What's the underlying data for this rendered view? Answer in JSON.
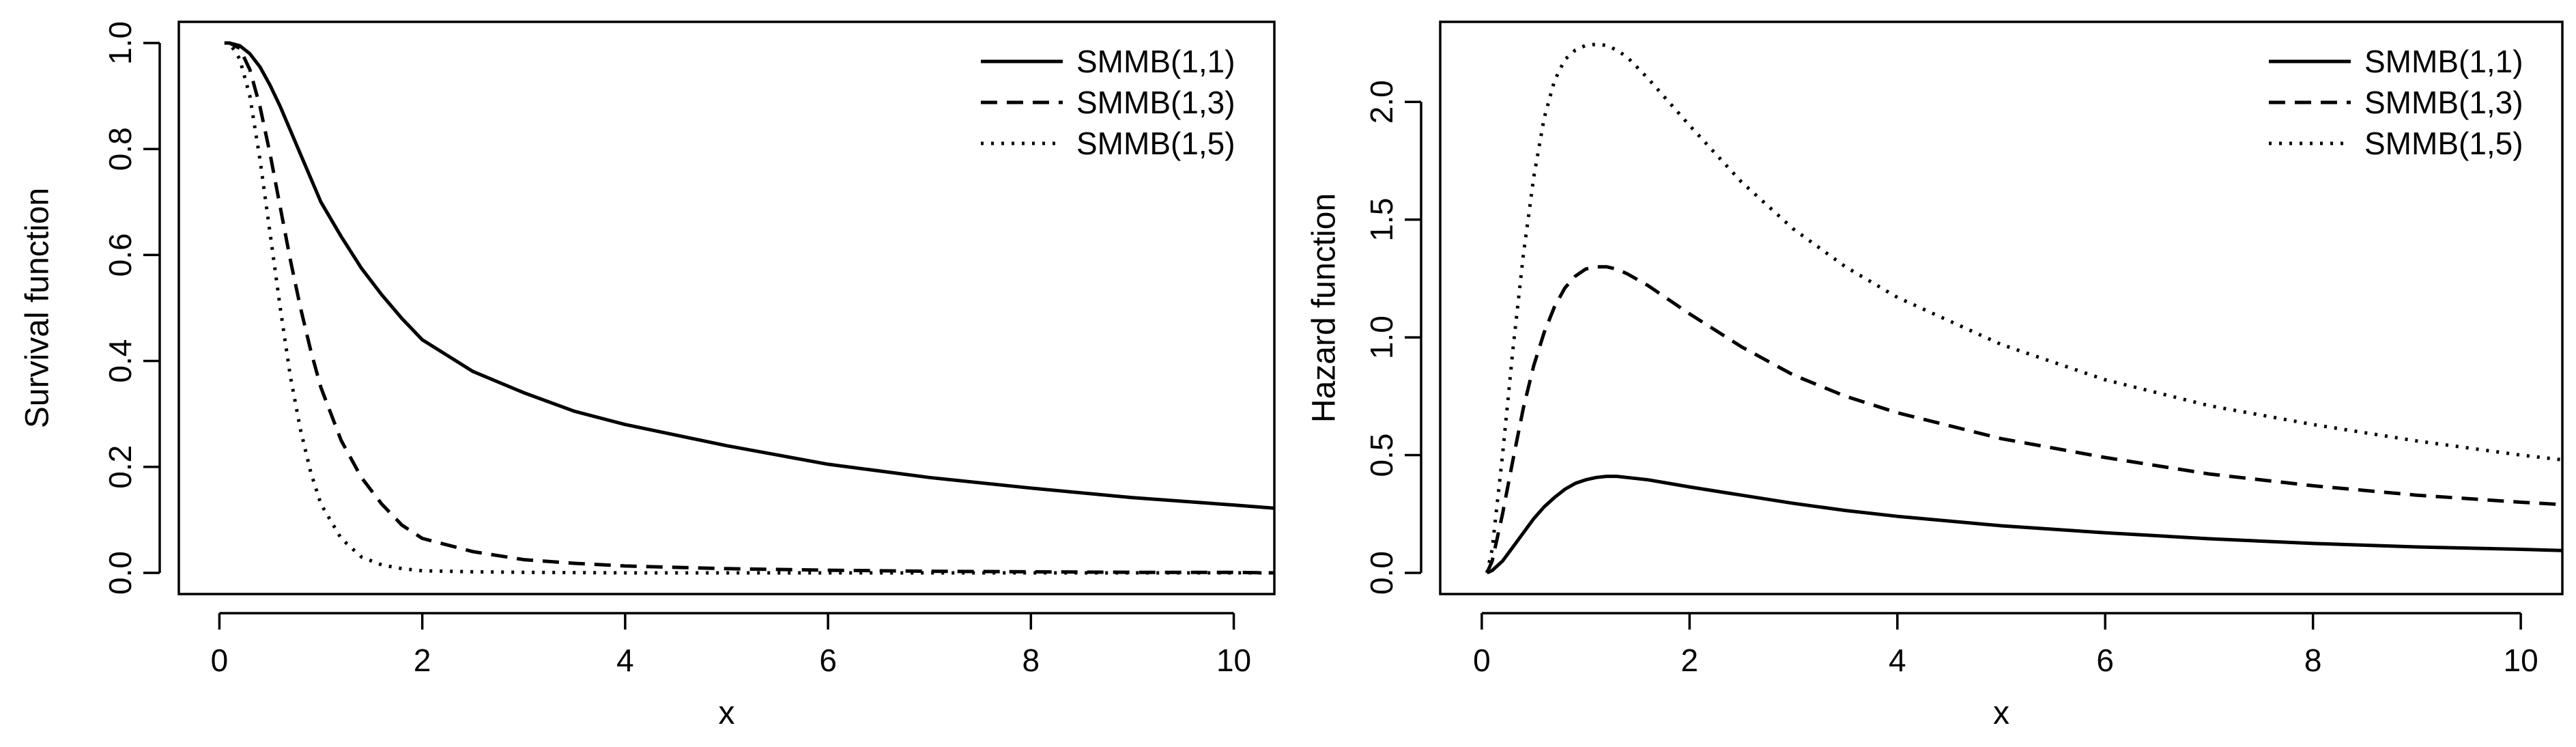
{
  "chart_data": [
    {
      "type": "line",
      "title": "",
      "xlabel": "x",
      "ylabel": "Survival function",
      "xlim": [
        -0.4,
        10.4
      ],
      "ylim": [
        -0.04,
        1.04
      ],
      "grid": false,
      "legend_position": "top-right",
      "x_ticks": [
        0,
        2,
        4,
        6,
        8,
        10
      ],
      "x_tick_labels": [
        "0",
        "2",
        "4",
        "6",
        "8",
        "10"
      ],
      "y_ticks": [
        0.0,
        0.2,
        0.4,
        0.6,
        0.8,
        1.0
      ],
      "y_tick_labels": [
        "0.0",
        "0.2",
        "0.4",
        "0.6",
        "0.8",
        "1.0"
      ],
      "x": [
        0.05,
        0.1,
        0.2,
        0.3,
        0.4,
        0.5,
        0.6,
        0.7,
        0.8,
        0.9,
        1.0,
        1.2,
        1.4,
        1.6,
        1.8,
        2.0,
        2.5,
        3.0,
        3.5,
        4.0,
        5.0,
        6.0,
        7.0,
        8.0,
        9.0,
        10.0,
        10.4
      ],
      "series": [
        {
          "name": "SMMB(1,1)",
          "dash": "solid",
          "values": [
            1.0,
            1.0,
            0.995,
            0.98,
            0.955,
            0.92,
            0.88,
            0.835,
            0.79,
            0.745,
            0.7,
            0.635,
            0.575,
            0.525,
            0.48,
            0.44,
            0.38,
            0.34,
            0.305,
            0.28,
            0.24,
            0.205,
            0.18,
            0.16,
            0.142,
            0.128,
            0.122
          ]
        },
        {
          "name": "SMMB(1,3)",
          "dash": "dashed",
          "values": [
            1.0,
            1.0,
            0.99,
            0.95,
            0.88,
            0.79,
            0.69,
            0.59,
            0.5,
            0.42,
            0.35,
            0.25,
            0.18,
            0.13,
            0.09,
            0.065,
            0.04,
            0.025,
            0.018,
            0.013,
            0.008,
            0.005,
            0.003,
            0.002,
            0.001,
            0.001,
            0.0
          ]
        },
        {
          "name": "SMMB(1,5)",
          "dash": "dotted",
          "values": [
            1.0,
            1.0,
            0.97,
            0.9,
            0.78,
            0.64,
            0.5,
            0.37,
            0.27,
            0.19,
            0.13,
            0.065,
            0.03,
            0.015,
            0.008,
            0.004,
            0.002,
            0.001,
            0.0005,
            0.0,
            0.0,
            0.0,
            0.0,
            0.0,
            0.0,
            0.0,
            0.0
          ]
        }
      ]
    },
    {
      "type": "line",
      "title": "",
      "xlabel": "x",
      "ylabel": "Hazard function",
      "xlim": [
        -0.4,
        10.4
      ],
      "ylim": [
        -0.09,
        2.34
      ],
      "grid": false,
      "legend_position": "top-right",
      "x_ticks": [
        0,
        2,
        4,
        6,
        8,
        10
      ],
      "x_tick_labels": [
        "0",
        "2",
        "4",
        "6",
        "8",
        "10"
      ],
      "y_ticks": [
        0.0,
        0.5,
        1.0,
        1.5,
        2.0
      ],
      "y_tick_labels": [
        "0.0",
        "0.5",
        "1.0",
        "1.5",
        "2.0"
      ],
      "x": [
        0.05,
        0.1,
        0.2,
        0.3,
        0.4,
        0.5,
        0.6,
        0.7,
        0.8,
        0.9,
        1.0,
        1.1,
        1.2,
        1.3,
        1.4,
        1.6,
        1.8,
        2.0,
        2.5,
        3.0,
        3.5,
        4.0,
        5.0,
        6.0,
        7.0,
        8.0,
        9.0,
        10.0,
        10.4
      ],
      "series": [
        {
          "name": "SMMB(1,1)",
          "dash": "solid",
          "values": [
            0.0,
            0.01,
            0.05,
            0.11,
            0.17,
            0.23,
            0.28,
            0.32,
            0.355,
            0.38,
            0.395,
            0.405,
            0.41,
            0.41,
            0.405,
            0.395,
            0.38,
            0.365,
            0.33,
            0.295,
            0.265,
            0.24,
            0.2,
            0.17,
            0.145,
            0.125,
            0.11,
            0.1,
            0.095
          ]
        },
        {
          "name": "SMMB(1,3)",
          "dash": "dashed",
          "values": [
            0.0,
            0.05,
            0.25,
            0.48,
            0.7,
            0.88,
            1.02,
            1.13,
            1.21,
            1.26,
            1.29,
            1.3,
            1.3,
            1.29,
            1.27,
            1.22,
            1.16,
            1.1,
            0.96,
            0.84,
            0.75,
            0.68,
            0.57,
            0.49,
            0.42,
            0.37,
            0.33,
            0.3,
            0.29
          ]
        },
        {
          "name": "SMMB(1,5)",
          "dash": "dotted",
          "values": [
            0.0,
            0.1,
            0.5,
            0.95,
            1.35,
            1.68,
            1.93,
            2.09,
            2.18,
            2.22,
            2.24,
            2.245,
            2.24,
            2.22,
            2.19,
            2.1,
            2.0,
            1.9,
            1.66,
            1.46,
            1.3,
            1.17,
            0.97,
            0.82,
            0.71,
            0.63,
            0.56,
            0.5,
            0.48
          ]
        }
      ]
    }
  ]
}
